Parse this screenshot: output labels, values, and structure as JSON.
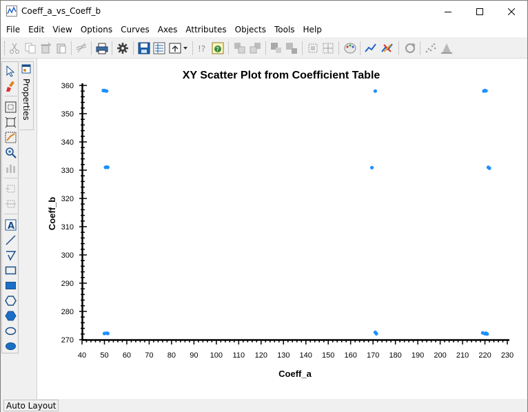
{
  "window": {
    "title": "Coeff_a_vs_Coeff_b",
    "buttons": [
      "minimize",
      "maximize",
      "close"
    ]
  },
  "menu": [
    "File",
    "Edit",
    "View",
    "Options",
    "Curves",
    "Axes",
    "Attributes",
    "Objects",
    "Tools",
    "Help"
  ],
  "toolbar": {
    "icons": [
      "cut-icon",
      "copy-icon",
      "delete-icon",
      "paste-icon",
      "clear-curve-icon",
      "print-icon",
      "settings-gear-icon",
      "save-icon",
      "export-data-icon",
      "export-image-icon",
      "query-icon",
      "help-icon",
      "bring-front-icon",
      "send-back-icon",
      "group-icon",
      "ungroup-icon",
      "align-icon",
      "distribute-icon",
      "palette-icon",
      "curve-style-icon",
      "erase-icon",
      "rotate-icon",
      "scatter-icon",
      "fill-icon"
    ]
  },
  "palette": {
    "tools": [
      "select-arrow-icon",
      "paint-icon",
      "zoom-fit-icon",
      "zoom-extents-icon",
      "zoom-data-icon",
      "zoom-icon",
      "bar-icon",
      "add-object-icon",
      "remove-object-icon",
      "text-tool-icon",
      "line-tool-icon",
      "polyline-tool-icon",
      "rectangle-tool-icon",
      "filled-rectangle-tool-icon",
      "hexagon-tool-icon",
      "filled-hexagon-tool-icon",
      "ellipse-tool-icon",
      "filled-ellipse-tool-icon"
    ]
  },
  "properties_tab": {
    "label": "Properties"
  },
  "status": {
    "text": "Auto Layout"
  },
  "colors": {
    "point": "#1e90ff",
    "axis": "#000000",
    "background": "#ffffff"
  },
  "chart_data": {
    "type": "scatter",
    "title": "XY Scatter Plot from Coefficient Table",
    "xlabel": "Coeff_a",
    "ylabel": "Coeff_b",
    "xlim": [
      40,
      230
    ],
    "ylim": [
      270,
      360
    ],
    "x_ticks": [
      40,
      50,
      60,
      70,
      80,
      90,
      100,
      110,
      120,
      130,
      140,
      150,
      160,
      170,
      180,
      190,
      200,
      210,
      220,
      230
    ],
    "y_ticks": [
      270,
      280,
      290,
      300,
      310,
      320,
      330,
      340,
      350,
      360
    ],
    "grid": false,
    "legend": "none",
    "series": [
      {
        "points": [
          {
            "x": 49.5,
            "y": 358.2
          },
          {
            "x": 50,
            "y": 358.2
          },
          {
            "x": 50.5,
            "y": 358.1
          },
          {
            "x": 51,
            "y": 358.0
          },
          {
            "x": 171,
            "y": 358.0
          },
          {
            "x": 219.5,
            "y": 358.0
          },
          {
            "x": 220,
            "y": 358.2
          },
          {
            "x": 220.5,
            "y": 358.1
          },
          {
            "x": 50.5,
            "y": 331.0
          },
          {
            "x": 51,
            "y": 331.1
          },
          {
            "x": 51.5,
            "y": 331.0
          },
          {
            "x": 169.5,
            "y": 330.9
          },
          {
            "x": 221.5,
            "y": 331.0
          },
          {
            "x": 222,
            "y": 330.7
          },
          {
            "x": 50,
            "y": 272.2
          },
          {
            "x": 51,
            "y": 272.3
          },
          {
            "x": 51.5,
            "y": 272.2
          },
          {
            "x": 171,
            "y": 272.6
          },
          {
            "x": 171.5,
            "y": 272.1
          },
          {
            "x": 219,
            "y": 272.4
          },
          {
            "x": 220,
            "y": 272.1
          },
          {
            "x": 220.5,
            "y": 272.3
          },
          {
            "x": 221,
            "y": 272.0
          }
        ]
      }
    ]
  }
}
